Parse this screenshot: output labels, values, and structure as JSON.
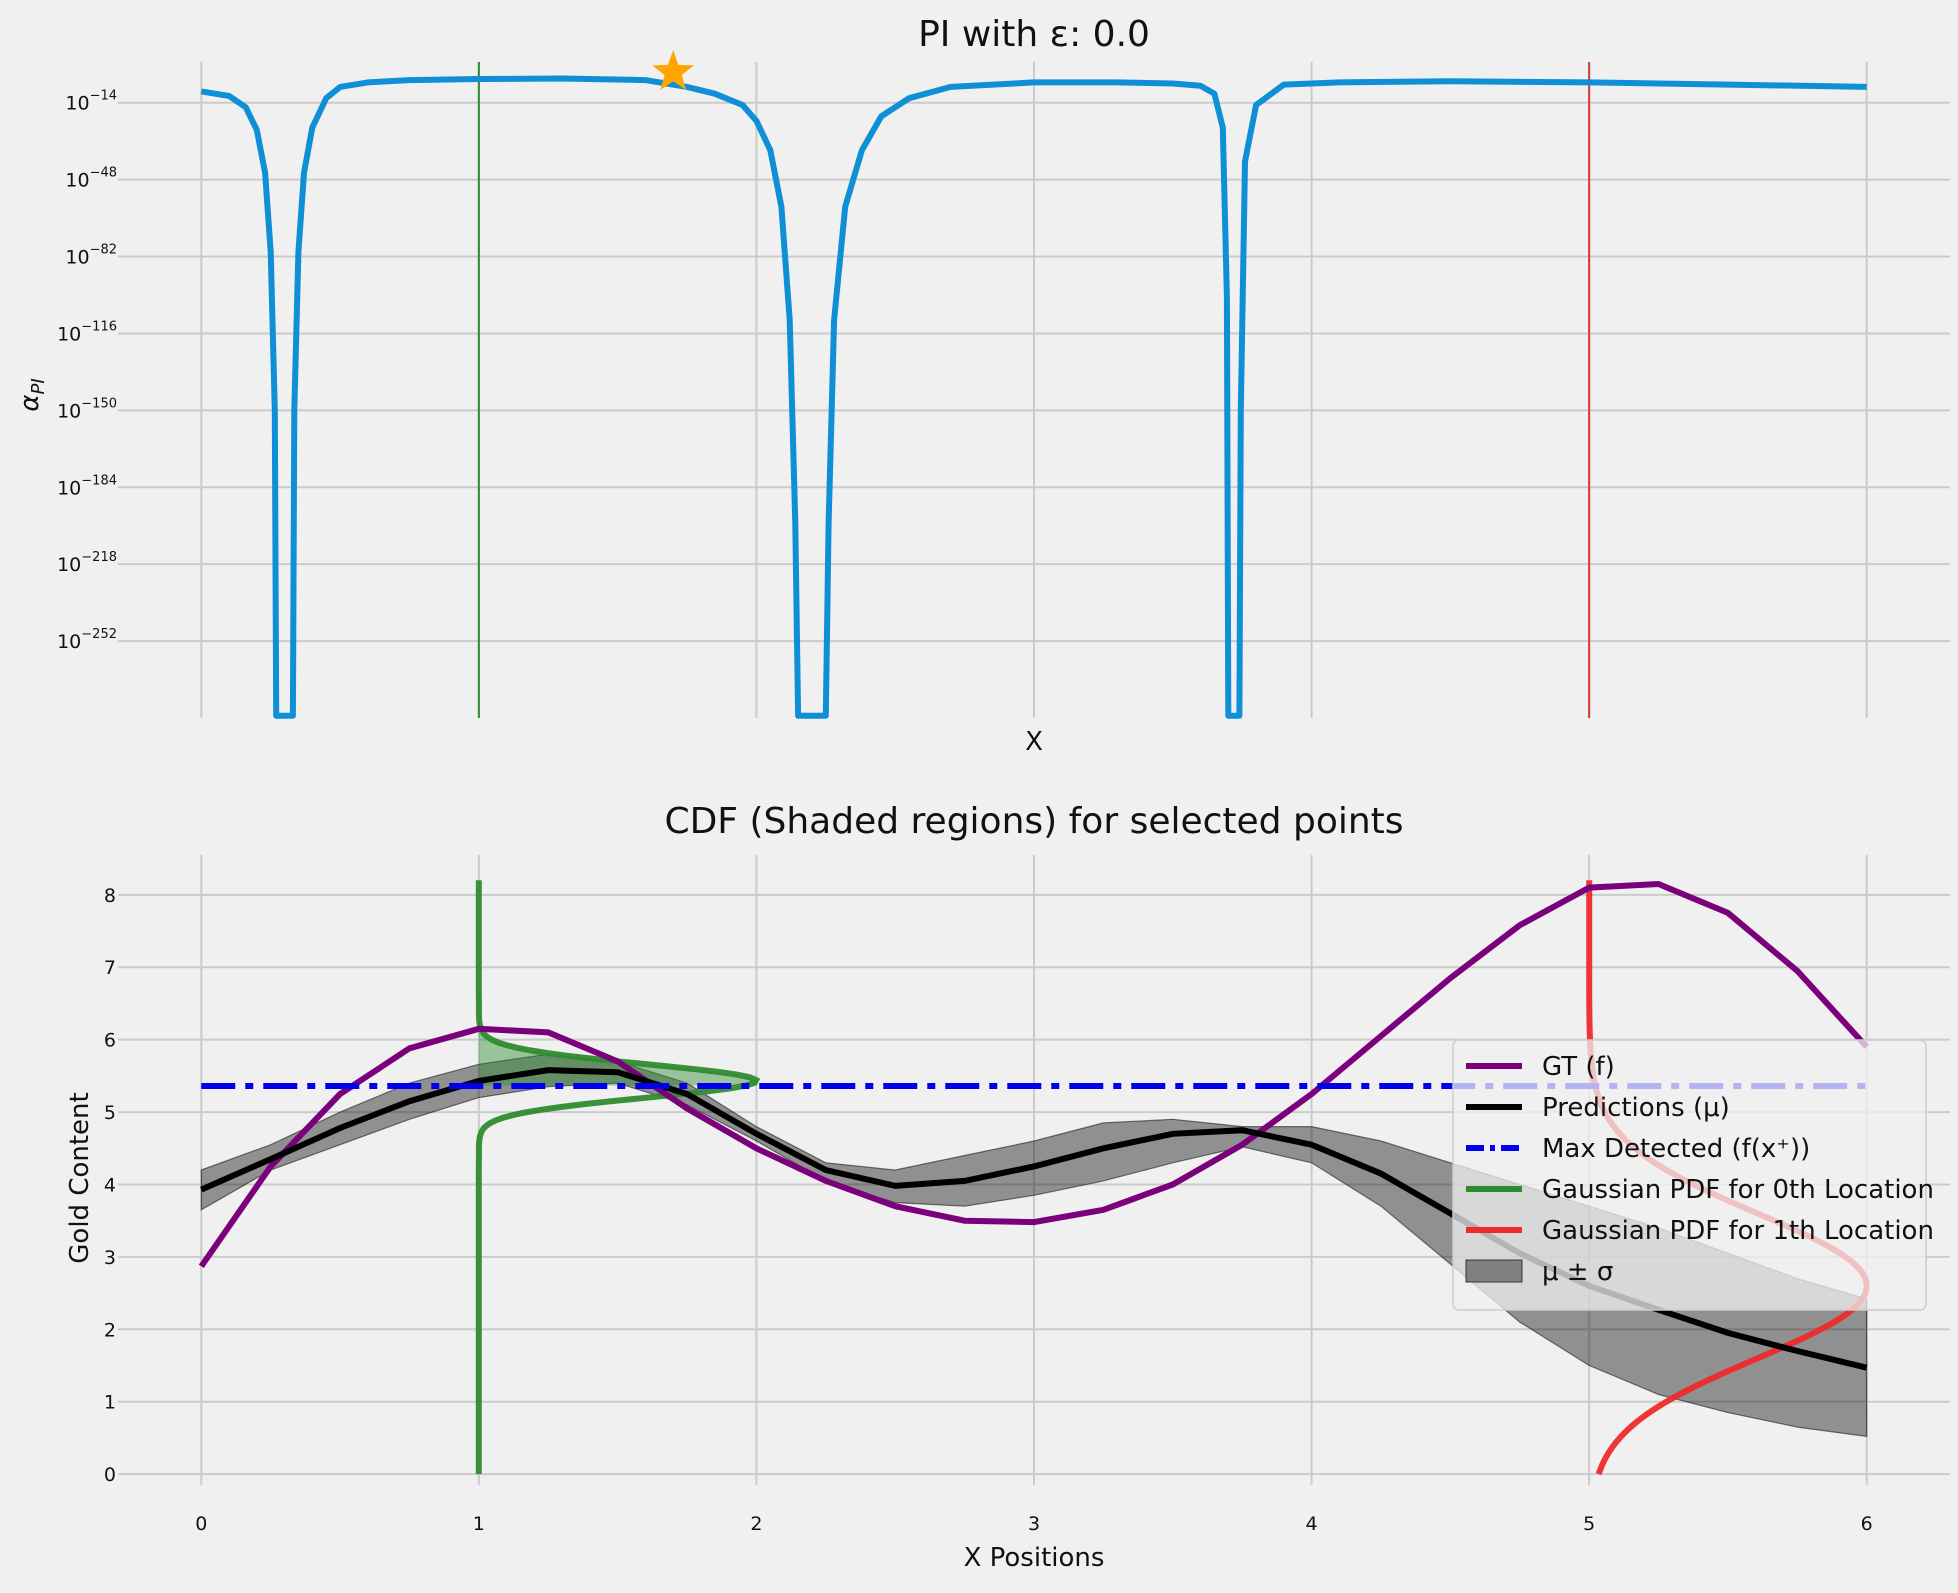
{
  "chart_data": [
    {
      "type": "line",
      "title": "PI with ε: 0.0",
      "xlabel": "X",
      "ylabel": "α_PI",
      "yscale": "log",
      "yticks": [
        {
          "base": "10",
          "exp": "−14"
        },
        {
          "base": "10",
          "exp": "−48"
        },
        {
          "base": "10",
          "exp": "−82"
        },
        {
          "base": "10",
          "exp": "−116"
        },
        {
          "base": "10",
          "exp": "−150"
        },
        {
          "base": "10",
          "exp": "−184"
        },
        {
          "base": "10",
          "exp": "−218"
        },
        {
          "base": "10",
          "exp": "−252"
        }
      ],
      "xlim": [
        -0.3,
        6.3
      ],
      "ylim_log10": [
        -286,
        4
      ],
      "grid": true,
      "colors": {
        "curve": "#0e8fd6",
        "marker": "#ffa500",
        "vline_0": "#2e8b2e",
        "vline_1": "#cf3a3a"
      },
      "vlines": [
        1.0,
        5.0
      ],
      "best_point": {
        "x": 1.7,
        "log10_y": -0.5
      },
      "series": [
        {
          "x": [
            0.0,
            0.1,
            0.16,
            0.2,
            0.23,
            0.25,
            0.265,
            0.27,
            0.33,
            0.335,
            0.35,
            0.37,
            0.4,
            0.45,
            0.5,
            0.6,
            0.75,
            1.0,
            1.3,
            1.6,
            1.75,
            1.85,
            1.95,
            2.0,
            2.05,
            2.09,
            2.12,
            2.14,
            2.15,
            2.25,
            2.26,
            2.28,
            2.32,
            2.38,
            2.45,
            2.55,
            2.7,
            3.0,
            3.3,
            3.5,
            3.6,
            3.65,
            3.68,
            3.695,
            3.7,
            3.74,
            3.745,
            3.76,
            3.8,
            3.9,
            4.1,
            4.5,
            5.0,
            5.5,
            6.0
          ],
          "log10_y": [
            -9,
            -11,
            -16,
            -26,
            -45,
            -80,
            -150,
            -286,
            -286,
            -150,
            -80,
            -45,
            -25,
            -12,
            -7,
            -5,
            -4,
            -3.5,
            -3.3,
            -4,
            -7,
            -10,
            -15,
            -22,
            -35,
            -60,
            -110,
            -200,
            -286,
            -286,
            -200,
            -110,
            -60,
            -35,
            -20,
            -12,
            -7,
            -5,
            -5,
            -5.5,
            -6.5,
            -10,
            -25,
            -100,
            -286,
            -286,
            -150,
            -40,
            -15,
            -6,
            -5,
            -4.5,
            -5,
            -6,
            -7
          ]
        }
      ]
    },
    {
      "type": "line",
      "title": "CDF (Shaded regions) for selected points",
      "xlabel": "X Positions",
      "ylabel": "Gold Content",
      "xticks": [
        "0",
        "1",
        "2",
        "3",
        "4",
        "5",
        "6"
      ],
      "yticks": [
        "0",
        "1",
        "2",
        "3",
        "4",
        "5",
        "6",
        "7",
        "8"
      ],
      "xlim": [
        -0.3,
        6.3
      ],
      "ylim": [
        -0.15,
        8.55
      ],
      "grid": true,
      "legend_position": "center-right",
      "max_detected": 5.36,
      "x": [
        0.0,
        0.25,
        0.5,
        0.75,
        1.0,
        1.25,
        1.5,
        1.75,
        2.0,
        2.25,
        2.5,
        2.75,
        3.0,
        3.25,
        3.5,
        3.75,
        4.0,
        4.25,
        4.5,
        4.75,
        5.0,
        5.25,
        5.5,
        5.75,
        6.0
      ],
      "series": [
        {
          "name": "GT (f)",
          "color": "#7b007b",
          "values": [
            2.87,
            4.25,
            5.25,
            5.88,
            6.15,
            6.1,
            5.7,
            5.05,
            4.5,
            4.05,
            3.7,
            3.5,
            3.48,
            3.65,
            4.0,
            4.55,
            5.25,
            6.05,
            6.85,
            7.58,
            8.1,
            8.15,
            7.75,
            6.95,
            5.9
          ]
        },
        {
          "name": "Predictions (μ)",
          "color": "#000000",
          "values": [
            3.93,
            4.35,
            4.78,
            5.15,
            5.43,
            5.58,
            5.55,
            5.25,
            4.7,
            4.2,
            3.98,
            4.05,
            4.25,
            4.5,
            4.7,
            4.75,
            4.55,
            4.15,
            3.6,
            3.05,
            2.6,
            2.27,
            1.95,
            1.7,
            1.47
          ]
        },
        {
          "name": "Max Detected (f(x⁺))",
          "color": "#0000ee",
          "values": [
            5.36,
            5.36,
            5.36,
            5.36,
            5.36,
            5.36,
            5.36,
            5.36,
            5.36,
            5.36,
            5.36,
            5.36,
            5.36,
            5.36,
            5.36,
            5.36,
            5.36,
            5.36,
            5.36,
            5.36,
            5.36,
            5.36,
            5.36,
            5.36,
            5.36
          ]
        },
        {
          "name": "μ ± σ",
          "color": "#555555",
          "lower": [
            3.65,
            4.2,
            4.55,
            4.9,
            5.2,
            5.35,
            5.4,
            5.1,
            4.6,
            4.05,
            3.75,
            3.7,
            3.85,
            4.05,
            4.3,
            4.52,
            4.3,
            3.7,
            2.9,
            2.1,
            1.5,
            1.1,
            0.85,
            0.65,
            0.52
          ],
          "upper": [
            4.2,
            4.55,
            5.0,
            5.4,
            5.66,
            5.8,
            5.7,
            5.4,
            4.8,
            4.3,
            4.2,
            4.4,
            4.6,
            4.85,
            4.9,
            4.8,
            4.8,
            4.6,
            4.3,
            4.0,
            3.7,
            3.4,
            3.05,
            2.7,
            2.42
          ]
        }
      ],
      "gaussian_pdfs": [
        {
          "name": "Gaussian PDF for 0th Location",
          "color": "#2e8b2e",
          "x0": 1.0,
          "mu": 5.43,
          "sigma": 0.23,
          "width": 1.0
        },
        {
          "name": "Gaussian PDF for 1th Location",
          "color": "#ee2a2a",
          "x0": 5.0,
          "mu": 2.6,
          "sigma": 1.0,
          "width": 1.0
        }
      ],
      "legend": [
        {
          "label": "GT (f)",
          "kind": "line",
          "color": "#7b007b"
        },
        {
          "label": "Predictions (μ)",
          "kind": "line",
          "color": "#000000"
        },
        {
          "label": "Max Detected (f(x⁺))",
          "kind": "dashdot",
          "color": "#0000ee"
        },
        {
          "label": "Gaussian PDF for 0th Location",
          "kind": "line",
          "color": "#2e8b2e"
        },
        {
          "label": "Gaussian PDF for 1th Location",
          "kind": "line",
          "color": "#ee2a2a"
        },
        {
          "label": "μ ± σ",
          "kind": "patch",
          "color": "#808080"
        }
      ]
    }
  ]
}
